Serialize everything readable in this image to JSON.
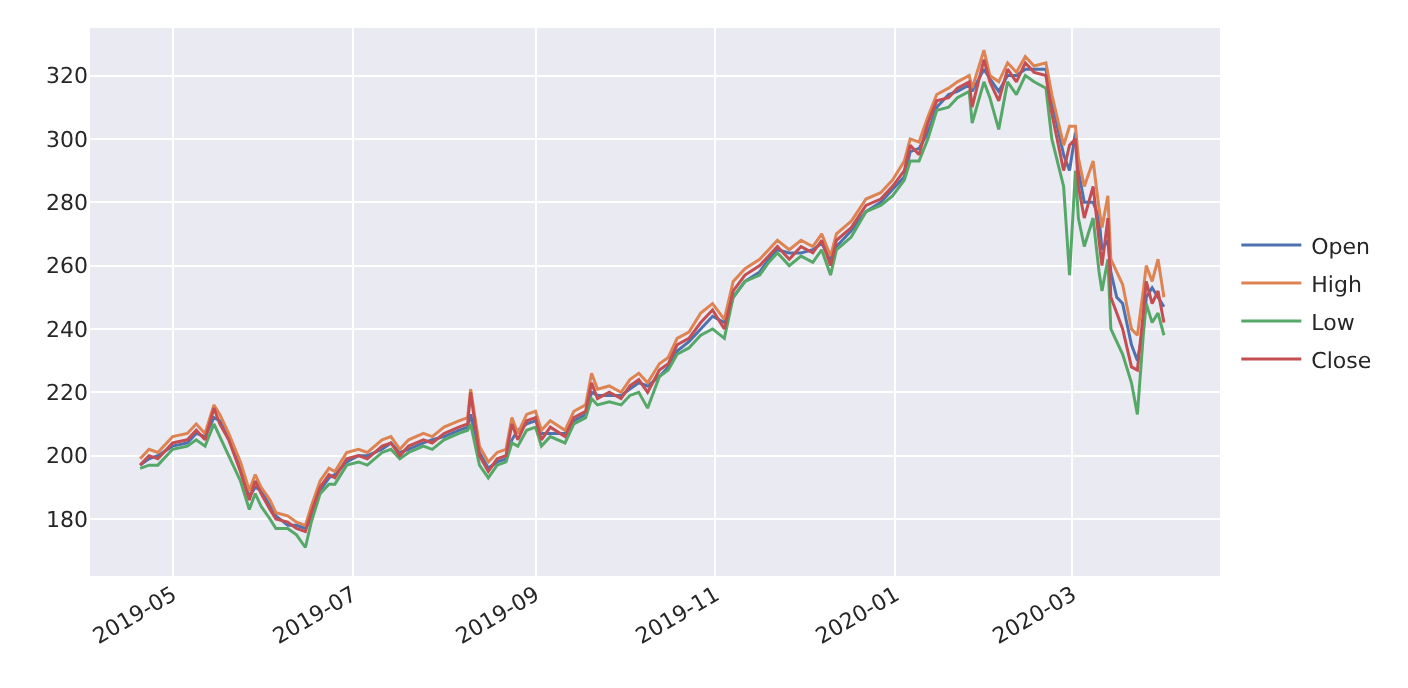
{
  "chart_data": {
    "type": "line",
    "x": [
      "2019-04-20",
      "2019-04-23",
      "2019-04-26",
      "2019-05-01",
      "2019-05-06",
      "2019-05-09",
      "2019-05-12",
      "2019-05-15",
      "2019-05-17",
      "2019-05-20",
      "2019-05-24",
      "2019-05-27",
      "2019-05-29",
      "2019-05-31",
      "2019-06-03",
      "2019-06-05",
      "2019-06-09",
      "2019-06-12",
      "2019-06-15",
      "2019-06-17",
      "2019-06-20",
      "2019-06-23",
      "2019-06-25",
      "2019-06-29",
      "2019-07-03",
      "2019-07-06",
      "2019-07-11",
      "2019-07-14",
      "2019-07-17",
      "2019-07-20",
      "2019-07-25",
      "2019-07-28",
      "2019-08-01",
      "2019-08-06",
      "2019-08-09",
      "2019-08-10",
      "2019-08-13",
      "2019-08-16",
      "2019-08-19",
      "2019-08-22",
      "2019-08-24",
      "2019-08-26",
      "2019-08-29",
      "2019-09-01",
      "2019-09-03",
      "2019-09-06",
      "2019-09-11",
      "2019-09-14",
      "2019-09-18",
      "2019-09-20",
      "2019-09-22",
      "2019-09-26",
      "2019-09-30",
      "2019-10-03",
      "2019-10-06",
      "2019-10-09",
      "2019-10-13",
      "2019-10-16",
      "2019-10-19",
      "2019-10-23",
      "2019-10-27",
      "2019-10-31",
      "2019-11-04",
      "2019-11-07",
      "2019-11-11",
      "2019-11-16",
      "2019-11-19",
      "2019-11-22",
      "2019-11-26",
      "2019-11-30",
      "2019-12-04",
      "2019-12-07",
      "2019-12-10",
      "2019-12-12",
      "2019-12-17",
      "2019-12-22",
      "2019-12-27",
      "2019-12-31",
      "2020-01-04",
      "2020-01-06",
      "2020-01-09",
      "2020-01-12",
      "2020-01-15",
      "2020-01-19",
      "2020-01-22",
      "2020-01-26",
      "2020-01-27",
      "2020-01-31",
      "2020-02-02",
      "2020-02-05",
      "2020-02-08",
      "2020-02-11",
      "2020-02-14",
      "2020-02-17",
      "2020-02-21",
      "2020-02-23",
      "2020-02-27",
      "2020-02-29",
      "2020-03-02",
      "2020-03-03",
      "2020-03-05",
      "2020-03-08",
      "2020-03-10",
      "2020-03-11",
      "2020-03-13",
      "2020-03-14",
      "2020-03-16",
      "2020-03-18",
      "2020-03-21",
      "2020-03-23",
      "2020-03-25",
      "2020-03-26",
      "2020-03-28",
      "2020-03-30",
      "2020-04-01"
    ],
    "series": [
      {
        "name": "Open",
        "color": "#4c72b0",
        "values": [
          197,
          199,
          200,
          203,
          204,
          207,
          206,
          212,
          211,
          206,
          197,
          187,
          190,
          189,
          184,
          181,
          178,
          178,
          177,
          180,
          189,
          193,
          194,
          198,
          200,
          200,
          202,
          204,
          201,
          202,
          204,
          205,
          206,
          208,
          209,
          213,
          201,
          196,
          198,
          199,
          205,
          208,
          210,
          211,
          207,
          207,
          207,
          211,
          213,
          220,
          219,
          219,
          219,
          221,
          223,
          222,
          225,
          228,
          233,
          236,
          240,
          244,
          242,
          250,
          255,
          258,
          262,
          265,
          264,
          264,
          265,
          267,
          262,
          266,
          271,
          277,
          280,
          284,
          288,
          296,
          297,
          302,
          310,
          314,
          315,
          317,
          315,
          322,
          319,
          315,
          320,
          320,
          322,
          322,
          322,
          312,
          295,
          290,
          302,
          290,
          280,
          280,
          275,
          265,
          268,
          258,
          250,
          248,
          235,
          230,
          240,
          250,
          253,
          250,
          247
        ]
      },
      {
        "name": "High",
        "color": "#dd8452",
        "values": [
          199,
          202,
          201,
          206,
          207,
          210,
          207,
          216,
          213,
          207,
          198,
          189,
          194,
          190,
          186,
          182,
          181,
          179,
          178,
          184,
          192,
          196,
          195,
          201,
          202,
          201,
          205,
          206,
          202,
          205,
          207,
          206,
          209,
          211,
          212,
          221,
          203,
          198,
          201,
          202,
          212,
          207,
          213,
          214,
          208,
          211,
          208,
          214,
          216,
          226,
          221,
          222,
          220,
          224,
          226,
          223,
          229,
          231,
          237,
          239,
          245,
          248,
          243,
          255,
          259,
          262,
          265,
          268,
          265,
          268,
          266,
          270,
          263,
          270,
          274,
          281,
          283,
          287,
          293,
          300,
          299,
          307,
          314,
          316,
          318,
          320,
          316,
          328,
          320,
          318,
          324,
          321,
          326,
          323,
          324,
          314,
          298,
          304,
          304,
          294,
          285,
          293,
          278,
          272,
          282,
          262,
          258,
          254,
          240,
          238,
          252,
          260,
          255,
          262,
          250
        ]
      },
      {
        "name": "Low",
        "color": "#55a868",
        "values": [
          196,
          197,
          197,
          202,
          203,
          205,
          203,
          210,
          206,
          200,
          192,
          183,
          188,
          184,
          180,
          177,
          177,
          175,
          171,
          179,
          188,
          191,
          191,
          197,
          198,
          197,
          201,
          202,
          199,
          201,
          203,
          202,
          205,
          207,
          208,
          210,
          197,
          193,
          197,
          198,
          204,
          203,
          208,
          209,
          203,
          206,
          204,
          210,
          212,
          218,
          216,
          217,
          216,
          219,
          220,
          215,
          225,
          227,
          232,
          234,
          238,
          240,
          237,
          250,
          255,
          257,
          261,
          264,
          260,
          263,
          261,
          265,
          257,
          265,
          269,
          277,
          279,
          282,
          287,
          293,
          293,
          300,
          309,
          310,
          313,
          315,
          305,
          318,
          313,
          303,
          318,
          314,
          320,
          318,
          316,
          300,
          285,
          257,
          290,
          275,
          266,
          275,
          258,
          252,
          262,
          240,
          236,
          232,
          223,
          213,
          238,
          248,
          242,
          245,
          238
        ]
      },
      {
        "name": "Close",
        "color": "#c44e52",
        "values": [
          197,
          200,
          199,
          204,
          205,
          208,
          205,
          215,
          210,
          205,
          195,
          186,
          192,
          188,
          183,
          180,
          179,
          177,
          176,
          182,
          190,
          194,
          193,
          199,
          200,
          199,
          203,
          204,
          200,
          203,
          205,
          204,
          207,
          209,
          210,
          220,
          200,
          195,
          199,
          200,
          210,
          205,
          211,
          212,
          205,
          209,
          206,
          212,
          214,
          223,
          218,
          220,
          218,
          222,
          224,
          220,
          227,
          229,
          235,
          237,
          242,
          246,
          240,
          252,
          257,
          260,
          263,
          266,
          262,
          266,
          264,
          268,
          260,
          268,
          272,
          279,
          281,
          285,
          290,
          298,
          295,
          305,
          312,
          313,
          316,
          318,
          310,
          325,
          318,
          312,
          322,
          318,
          324,
          321,
          320,
          308,
          290,
          298,
          300,
          285,
          275,
          285,
          268,
          260,
          275,
          250,
          245,
          240,
          228,
          227,
          245,
          255,
          248,
          252,
          242
        ]
      }
    ],
    "xlim": [
      "2019-04-03",
      "2020-04-20"
    ],
    "xticks": [
      "2019-05",
      "2019-07",
      "2019-09",
      "2019-11",
      "2020-01",
      "2020-03"
    ],
    "ylim": [
      162,
      335
    ],
    "yticks": [
      180,
      200,
      220,
      240,
      260,
      280,
      300,
      320
    ],
    "grid": true,
    "legend": "right",
    "marker": "none",
    "line_style": "solid"
  }
}
